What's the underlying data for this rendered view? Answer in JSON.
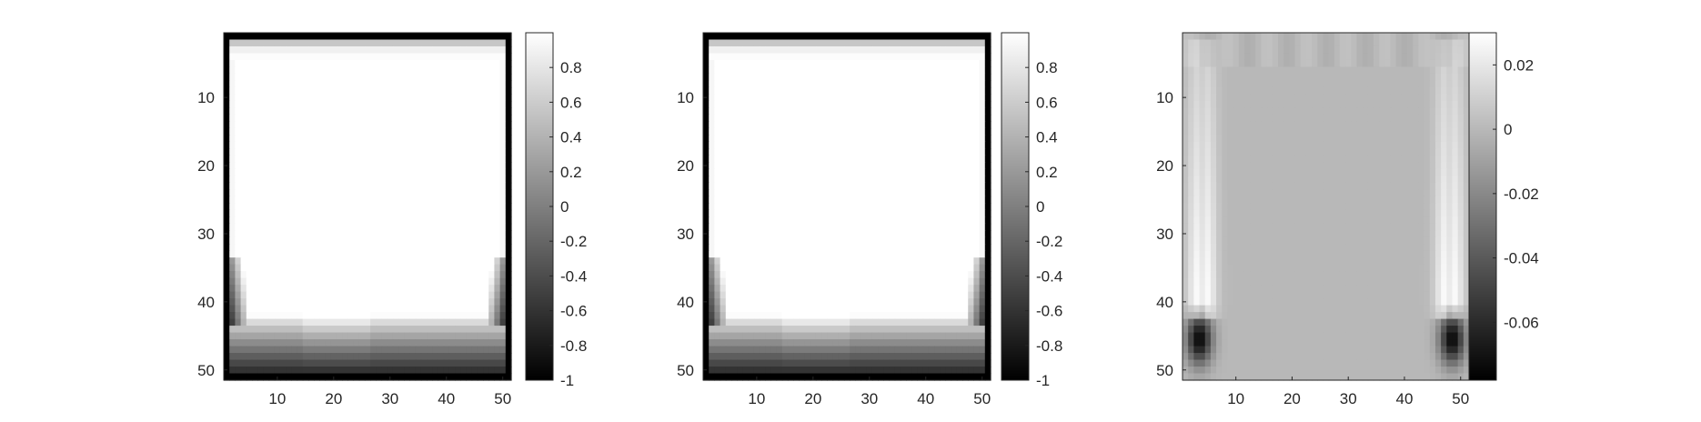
{
  "chart_data": [
    {
      "type": "heatmap",
      "title": "",
      "xlabel": "",
      "ylabel": "",
      "xlim": [
        0.5,
        51.5
      ],
      "ylim": [
        0.5,
        51.5
      ],
      "y_reversed": true,
      "colormap": "gray",
      "x_ticks": [
        10,
        20,
        30,
        40,
        50
      ],
      "y_ticks": [
        10,
        20,
        30,
        40,
        50
      ],
      "colorbar": {
        "range": [
          -1,
          1
        ],
        "ticks": [
          0.8,
          0.6,
          0.4,
          0.2,
          0,
          -0.2,
          -0.4,
          -0.6,
          -0.8,
          -1
        ]
      },
      "field_model": {
        "kind": "flat_plateau",
        "interior_value": 1,
        "edge_value": -1,
        "top_fade_rows": [
          1,
          4
        ],
        "bottom_fade_rows": [
          42,
          51
        ],
        "side_dark_rows": [
          34,
          42
        ]
      }
    },
    {
      "type": "heatmap",
      "title": "",
      "xlabel": "",
      "ylabel": "",
      "xlim": [
        0.5,
        51.5
      ],
      "ylim": [
        0.5,
        51.5
      ],
      "y_reversed": true,
      "colormap": "gray",
      "x_ticks": [
        10,
        20,
        30,
        40,
        50
      ],
      "y_ticks": [
        10,
        20,
        30,
        40,
        50
      ],
      "colorbar": {
        "range": [
          -1,
          1
        ],
        "ticks": [
          0.8,
          0.6,
          0.4,
          0.2,
          0,
          -0.2,
          -0.4,
          -0.6,
          -0.8,
          -1
        ]
      },
      "field_model": {
        "kind": "flat_plateau",
        "interior_value": 1,
        "edge_value": -1,
        "top_fade_rows": [
          1,
          4
        ],
        "bottom_fade_rows": [
          42,
          51
        ],
        "side_dark_rows": [
          34,
          42
        ]
      }
    },
    {
      "type": "heatmap",
      "title": "",
      "xlabel": "",
      "ylabel": "",
      "xlim": [
        0.5,
        51.5
      ],
      "ylim": [
        0.5,
        51.5
      ],
      "y_reversed": true,
      "colormap": "gray",
      "x_ticks": [
        10,
        20,
        30,
        40,
        50
      ],
      "y_ticks": [
        10,
        20,
        30,
        40,
        50
      ],
      "colorbar": {
        "range": [
          -0.078,
          0.03
        ],
        "ticks": [
          0.02,
          0,
          -0.02,
          -0.04,
          -0.06
        ]
      },
      "field_model": {
        "kind": "difference",
        "background_value": 0.0,
        "side_bright_value": 0.028,
        "side_bright_rows": [
          2,
          41
        ],
        "corner_dark_value": -0.075,
        "corner_dark_rows": [
          41,
          50
        ]
      }
    }
  ]
}
